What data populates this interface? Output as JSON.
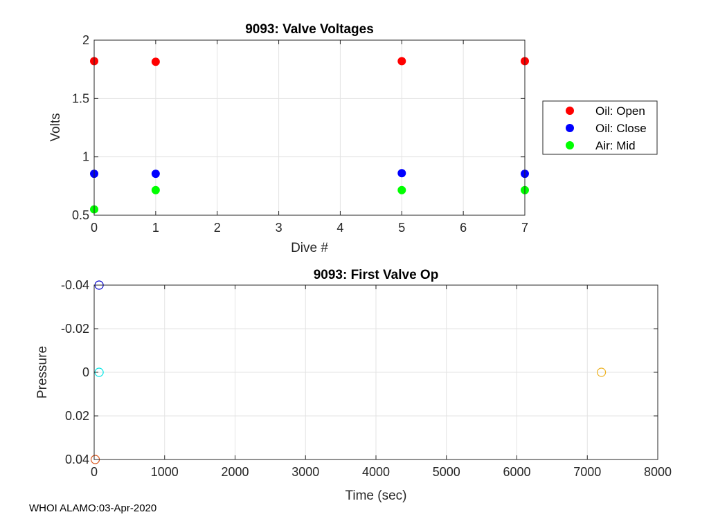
{
  "footer": "WHOI ALAMO:03-Apr-2020",
  "chart_data": [
    {
      "type": "scatter",
      "title": "9093: Valve Voltages",
      "xlabel": "Dive #",
      "ylabel": "Volts",
      "xlim": [
        0,
        7
      ],
      "ylim": [
        0.5,
        2
      ],
      "xticks": [
        0,
        1,
        2,
        3,
        4,
        5,
        6,
        7
      ],
      "yticks": [
        0.5,
        1,
        1.5,
        2
      ],
      "ytick_labels": [
        "0.5",
        "1",
        "1.5",
        "2"
      ],
      "grid": true,
      "legend_position": "outside-right",
      "series": [
        {
          "name": "Oil: Open",
          "color": "#ff0000",
          "x": [
            0,
            1,
            5,
            7
          ],
          "y": [
            1.82,
            1.815,
            1.82,
            1.82
          ]
        },
        {
          "name": "Oil: Close",
          "color": "#0000ff",
          "x": [
            0,
            1,
            5,
            7
          ],
          "y": [
            0.855,
            0.855,
            0.86,
            0.855
          ]
        },
        {
          "name": "Air: Mid",
          "color": "#00ff00",
          "x": [
            0,
            1,
            5,
            7
          ],
          "y": [
            0.55,
            0.715,
            0.715,
            0.715
          ]
        }
      ]
    },
    {
      "type": "scatter",
      "title": "9093: First Valve Op",
      "xlabel": "Time (sec)",
      "ylabel": "Pressure",
      "xlim": [
        0,
        8000
      ],
      "ylim": [
        -0.04,
        0.04
      ],
      "y_reversed": true,
      "xticks": [
        0,
        1000,
        2000,
        3000,
        4000,
        5000,
        6000,
        7000,
        8000
      ],
      "yticks": [
        -0.04,
        -0.02,
        0,
        0.02,
        0.04
      ],
      "ytick_labels": [
        "-0.04",
        "-0.02",
        "0",
        "0.02",
        "0.04"
      ],
      "grid": true,
      "marker": "open-circle",
      "series": [
        {
          "color": "#0000cc",
          "x": [
            70
          ],
          "y": [
            -0.04
          ]
        },
        {
          "color": "#00e5e5",
          "x": [
            70
          ],
          "y": [
            0
          ]
        },
        {
          "color": "#d95319",
          "x": [
            15
          ],
          "y": [
            0.04
          ]
        },
        {
          "color": "#edb120",
          "x": [
            7200
          ],
          "y": [
            0
          ]
        }
      ]
    }
  ]
}
